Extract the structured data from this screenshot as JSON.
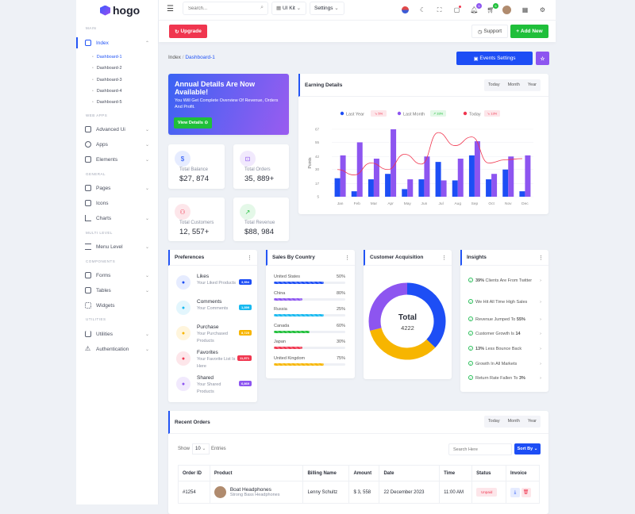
{
  "brand": {
    "name": "hogo"
  },
  "sidebar": {
    "sections": [
      "MAIN",
      "WEB APPS",
      "GENERAL",
      "MULTI LEVEL",
      "COMPONENTS",
      "UTILITIES"
    ],
    "index": {
      "label": "Index",
      "subitems": [
        "Dashboard-1",
        "Dashboard-2",
        "Dashboard-3",
        "Dashboard-4",
        "Dashboard-5"
      ]
    },
    "items": [
      {
        "label": "Advanced Ui"
      },
      {
        "label": "Apps"
      },
      {
        "label": "Elements"
      },
      {
        "label": "Pages"
      },
      {
        "label": "Icons"
      },
      {
        "label": "Charts"
      },
      {
        "label": "Menu Level"
      },
      {
        "label": "Forms"
      },
      {
        "label": "Tables"
      },
      {
        "label": "Widgets"
      },
      {
        "label": "Utilities"
      },
      {
        "label": "Authentication"
      }
    ]
  },
  "topbar": {
    "search_placeholder": "Search...",
    "uikit": "UI Kit",
    "settings": "Settings",
    "notif_count": "5",
    "cart_count": "5"
  },
  "actions": {
    "upgrade": "Upgrade",
    "support": "Support",
    "add_new": "Add New"
  },
  "breadcrumb": {
    "root": "Index",
    "current": "Dashboard-1"
  },
  "events_button": "Events Settings",
  "banner": {
    "title": "Annual Details Are Now Available!",
    "text": "You Will Get Complete Overview Of Revenue, Orders And Profit.",
    "button": "View Details"
  },
  "stats": [
    {
      "label": "Total Balance",
      "value": "$27, 874"
    },
    {
      "label": "Total Orders",
      "value": "35, 889+"
    },
    {
      "label": "Total Customers",
      "value": "12, 557+"
    },
    {
      "label": "Total Revenue",
      "value": "$88, 984"
    }
  ],
  "earning": {
    "title": "Earning Details",
    "tabs": [
      "Today",
      "Month",
      "Year"
    ]
  },
  "chart_data": {
    "type": "bar",
    "title": "Earning Details",
    "ylabel": "Points",
    "xlabel": "",
    "categories": [
      "Jan",
      "Feb",
      "Mar",
      "Apr",
      "May",
      "Jun",
      "Jul",
      "Aug",
      "Sep",
      "Oct",
      "Nov",
      "Dec"
    ],
    "yticks": [
      5,
      17,
      30,
      42,
      55,
      67
    ],
    "ylim": [
      5,
      67
    ],
    "legend": [
      {
        "name": "Last Year",
        "badge": "5%",
        "color": "#1d4ef5",
        "badge_type": "down"
      },
      {
        "name": "Last Month",
        "badge": "33%",
        "color": "#8d55f0",
        "badge_type": "up"
      },
      {
        "name": "Today",
        "badge": "13%",
        "color": "#f0364f",
        "badge_type": "down"
      }
    ],
    "series": [
      {
        "name": "Last Year",
        "type": "bar",
        "values": [
          22,
          10,
          21,
          26,
          12,
          21,
          37,
          20,
          43,
          21,
          30,
          10
        ]
      },
      {
        "name": "Last Month",
        "type": "bar",
        "values": [
          43,
          55,
          40,
          67,
          21,
          42,
          20,
          40,
          56,
          26,
          42,
          43
        ]
      },
      {
        "name": "Today",
        "type": "line",
        "values": [
          30,
          25,
          36,
          30,
          44,
          35,
          64,
          52,
          60,
          36,
          39,
          40
        ]
      }
    ]
  },
  "preferences": {
    "title": "Preferences",
    "items": [
      {
        "title": "Likes",
        "sub": "Your Liked Products",
        "badge": "3,554",
        "color": "#1d4ef5",
        "bg": "#e6ecff"
      },
      {
        "title": "Comments",
        "sub": "Your Comments",
        "badge": "1,399",
        "color": "#17b9f0",
        "bg": "#e3f6fd"
      },
      {
        "title": "Purchase",
        "sub": "Your Purchased Products",
        "badge": "8,725",
        "color": "#f7b500",
        "bg": "#fff5dc"
      },
      {
        "title": "Favorites",
        "sub": "Your Favorite List Is Here",
        "badge": "11,571",
        "color": "#f0364f",
        "bg": "#fde6ea"
      },
      {
        "title": "Shared",
        "sub": "Your Shared Products",
        "badge": "6,869",
        "color": "#8d55f0",
        "bg": "#f1e9fd"
      }
    ]
  },
  "sales": {
    "title": "Sales By Country",
    "items": [
      {
        "country": "United States",
        "pct": "50%",
        "fill": 70,
        "color": "#1d4ef5"
      },
      {
        "country": "China",
        "pct": "80%",
        "fill": 40,
        "color": "#8d55f0"
      },
      {
        "country": "Russia",
        "pct": "25%",
        "fill": 70,
        "color": "#17b9f0"
      },
      {
        "country": "Canada",
        "pct": "60%",
        "fill": 50,
        "color": "#1fbf3a"
      },
      {
        "country": "Japan",
        "pct": "30%",
        "fill": 40,
        "color": "#f0364f"
      },
      {
        "country": "United Kingdom",
        "pct": "75%",
        "fill": 70,
        "color": "#f7b500"
      }
    ]
  },
  "acquisition": {
    "title": "Customer Acquisition",
    "total_label": "Total",
    "total": "4222",
    "segments": [
      {
        "color": "#1d4ef5",
        "value": 37
      },
      {
        "color": "#f7b500",
        "value": 34
      },
      {
        "color": "#8d55f0",
        "value": 29
      }
    ]
  },
  "insights": {
    "title": "Insights",
    "items": [
      {
        "bold": "39%",
        "text": " Clients Are From Twitter"
      },
      {
        "bold": "",
        "text": "We Hit All Time High Sales"
      },
      {
        "bold": "",
        "text": "Revenue Jumped To ",
        "tail": "55%"
      },
      {
        "bold": "",
        "text": "Customer Growth Is ",
        "tail": "14"
      },
      {
        "bold": "13%",
        "text": " Less Bounce Back"
      },
      {
        "bold": "",
        "text": "Growth In All Markets"
      },
      {
        "bold": "",
        "text": "Return Rate Fallen To ",
        "tail": "3%"
      }
    ]
  },
  "orders": {
    "title": "Recent Orders",
    "tabs": [
      "Today",
      "Month",
      "Year"
    ],
    "show": "Show",
    "entries_value": "10",
    "entries": "Entries",
    "search_placeholder": "Search Here",
    "sort": "Sort By",
    "columns": [
      "Order ID",
      "Product",
      "Billing Name",
      "Amount",
      "Date",
      "Time",
      "Status",
      "Invoice"
    ],
    "rows": [
      {
        "id": "#1254",
        "product": "Boat Headphones",
        "product_sub": "Strong Bass Headphones",
        "billing": "Lenny Schultz",
        "amount": "$ 3, 558",
        "date": "22 December 2023",
        "time": "11:00 AM",
        "status": "Unpaid"
      }
    ]
  }
}
